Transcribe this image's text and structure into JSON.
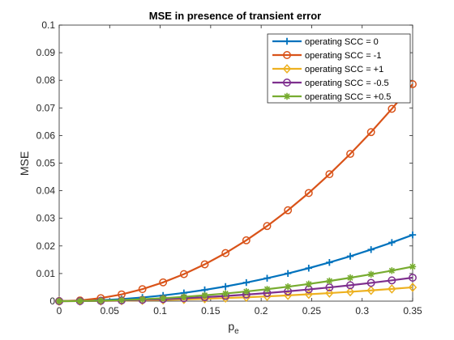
{
  "chart_data": {
    "type": "line",
    "title": "MSE in presence of transient error",
    "xlabel_main": "p",
    "xlabel_sub": "e",
    "ylabel": "MSE",
    "xlim": [
      0,
      0.35
    ],
    "ylim": [
      0,
      0.1
    ],
    "x_ticks": [
      0,
      0.05,
      0.1,
      0.15,
      0.2,
      0.25,
      0.3,
      0.35
    ],
    "x_tick_labels": [
      "0",
      "0.05",
      "0.1",
      "0.15",
      "0.2",
      "0.25",
      "0.3",
      "0.35"
    ],
    "y_ticks": [
      0,
      0.01,
      0.02,
      0.03,
      0.04,
      0.05,
      0.06,
      0.07,
      0.08,
      0.09,
      0.1
    ],
    "y_tick_labels": [
      "0",
      "0.01",
      "0.02",
      "0.03",
      "0.04",
      "0.05",
      "0.06",
      "0.07",
      "0.08",
      "0.09",
      "0.1"
    ],
    "grid": false,
    "legend_position": "top-right",
    "x": [
      0,
      0.0206,
      0.0412,
      0.0618,
      0.0824,
      0.1029,
      0.1235,
      0.1441,
      0.1647,
      0.1853,
      0.2059,
      0.2265,
      0.2471,
      0.2676,
      0.2882,
      0.3088,
      0.3294,
      0.35
    ],
    "series": [
      {
        "name": "operating SCC = 0",
        "color": "#0072BD",
        "marker": "plus",
        "values": [
          0,
          8e-05,
          0.00033,
          0.00075,
          0.00133,
          0.00207,
          0.00299,
          0.00407,
          0.00531,
          0.00672,
          0.0083,
          0.01004,
          0.01195,
          0.01402,
          0.01626,
          0.01867,
          0.02124,
          0.024
        ]
      },
      {
        "name": "operating SCC = -1",
        "color": "#D95319",
        "marker": "circle",
        "values": [
          0,
          0.00027,
          0.00109,
          0.00245,
          0.00435,
          0.0068,
          0.00979,
          0.01333,
          0.01741,
          0.02204,
          0.02721,
          0.03293,
          0.03918,
          0.04599,
          0.05334,
          0.06123,
          0.06967,
          0.0786
        ]
      },
      {
        "name": "operating SCC = +1",
        "color": "#EDB120",
        "marker": "diamond",
        "values": [
          0,
          2e-05,
          7e-05,
          0.00016,
          0.00028,
          0.00043,
          0.00062,
          0.00085,
          0.00111,
          0.0014,
          0.00173,
          0.00209,
          0.00249,
          0.00292,
          0.00339,
          0.00389,
          0.00443,
          0.005
        ]
      },
      {
        "name": "operating SCC = -0.5",
        "color": "#7E2F8E",
        "marker": "circle",
        "values": [
          0,
          3e-05,
          0.00012,
          0.00026,
          0.00047,
          0.00073,
          0.00106,
          0.00144,
          0.00188,
          0.00238,
          0.00294,
          0.00356,
          0.00424,
          0.00497,
          0.00576,
          0.00662,
          0.00753,
          0.0085
        ]
      },
      {
        "name": "operating SCC = +0.5",
        "color": "#77AC30",
        "marker": "asterisk",
        "values": [
          0,
          4e-05,
          0.00017,
          0.00039,
          0.00069,
          0.00108,
          0.00156,
          0.00212,
          0.00277,
          0.0035,
          0.00432,
          0.00523,
          0.00622,
          0.0073,
          0.00847,
          0.00973,
          0.01106,
          0.0125
        ]
      }
    ]
  }
}
